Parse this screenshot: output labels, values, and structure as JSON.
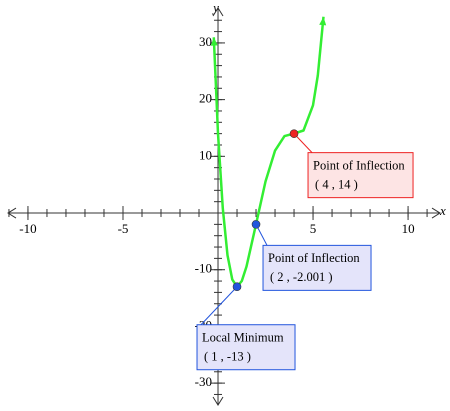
{
  "chart_data": {
    "type": "line",
    "x_label": "x",
    "y_label": "y",
    "xlim": [
      -11.05,
      11.68
    ],
    "ylim": [
      -33.86,
      36.16
    ],
    "xticks": [
      -10,
      -5,
      5,
      10
    ],
    "yticks": [
      -30,
      -20,
      -10,
      10,
      20,
      30
    ],
    "xminorticks": [
      -11,
      -10,
      -9,
      -8,
      -7,
      -6,
      -5,
      -4,
      -3,
      -2,
      -1,
      1,
      2,
      3,
      4,
      5,
      6,
      7,
      8,
      9,
      10,
      11
    ],
    "yminorticks": [
      -32,
      -30,
      -28,
      -26,
      -24,
      -22,
      -20,
      -18,
      -16,
      -14,
      -12,
      -10,
      -8,
      -6,
      -4,
      -2,
      2,
      4,
      6,
      8,
      10,
      12,
      14,
      16,
      18,
      20,
      22,
      24,
      26,
      28,
      30,
      32,
      34
    ],
    "series": [
      {
        "color": "#33ee33",
        "x": [
          -0.22,
          0,
          0.25,
          0.5,
          0.75,
          1,
          1.25,
          1.5,
          2,
          2.5,
          3,
          3.5,
          4,
          4.5,
          5,
          5.25,
          5.55
        ],
        "values": [
          31,
          14,
          0.82,
          -7.44,
          -11.75,
          -13,
          -11.99,
          -9.44,
          -2,
          5.56,
          11,
          13.56,
          14,
          14.56,
          19,
          24.25,
          34.6
        ]
      }
    ],
    "annotations": [
      {
        "x": 4,
        "y": 14,
        "color": "#ee2222",
        "title": "Point of Inflection",
        "label": "( 4 , 14 )"
      },
      {
        "x": 2,
        "y": -2.001,
        "color": "#2255dd",
        "title": "Point of Inflection",
        "label": "( 2 , -2.001 )"
      },
      {
        "x": 1,
        "y": -13,
        "color": "#2255dd",
        "title": "Local Minimum",
        "label": "( 1 , -13 )"
      }
    ]
  }
}
